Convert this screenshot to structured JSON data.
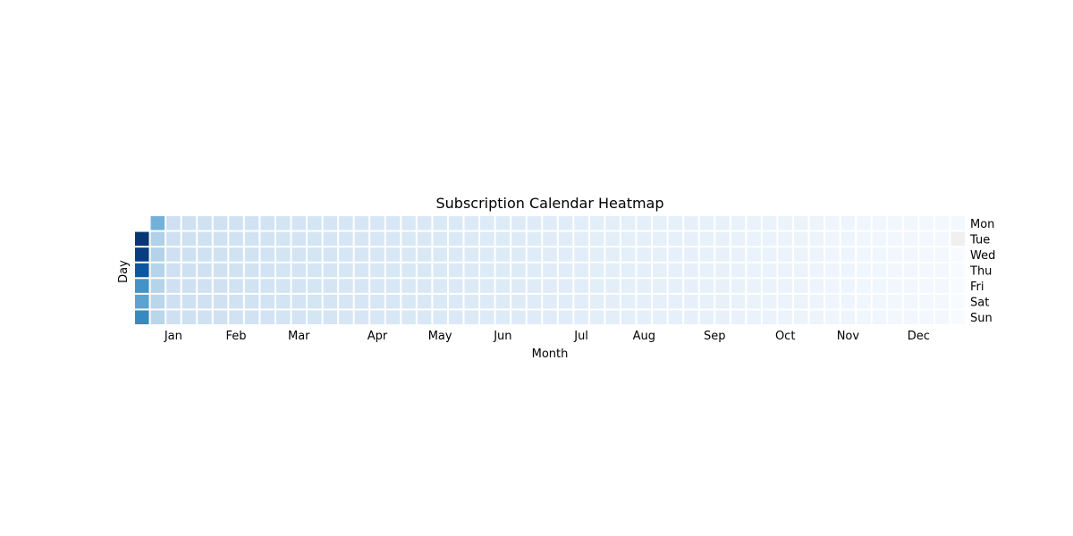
{
  "chart_data": {
    "type": "heatmap",
    "title": "Subscription Calendar Heatmap",
    "xlabel": "Month",
    "ylabel": "Day",
    "day_labels": [
      "Mon",
      "Tue",
      "Wed",
      "Thu",
      "Fri",
      "Sat",
      "Sun"
    ],
    "month_labels": [
      {
        "label": "Jan",
        "week": 2
      },
      {
        "label": "Feb",
        "week": 6
      },
      {
        "label": "Mar",
        "week": 10
      },
      {
        "label": "Apr",
        "week": 15
      },
      {
        "label": "May",
        "week": 19
      },
      {
        "label": "Jun",
        "week": 23
      },
      {
        "label": "Jul",
        "week": 28
      },
      {
        "label": "Aug",
        "week": 32
      },
      {
        "label": "Sep",
        "week": 36.5
      },
      {
        "label": "Oct",
        "week": 41
      },
      {
        "label": "Nov",
        "week": 45
      },
      {
        "label": "Dec",
        "week": 49.5
      }
    ],
    "weeks": 53,
    "colormap": [
      "#f7fbff",
      "#deebf7",
      "#c6dbef",
      "#9ecae1",
      "#6baed6",
      "#4292c6",
      "#2171b5",
      "#08519c",
      "#08306b"
    ],
    "missing_color": "#f0f0f0",
    "value_range": [
      0,
      1
    ],
    "first_week": [
      null,
      0.98,
      0.95,
      0.85,
      0.62,
      0.55,
      0.66
    ],
    "second_week": [
      0.48,
      0.32,
      0.31,
      0.3,
      0.3,
      0.29,
      0.29
    ],
    "decay": {
      "start": 0.21,
      "end": 0.02
    },
    "last_week": [
      0.02,
      null,
      0.0,
      0.0,
      0.0,
      0.0,
      0.0
    ]
  }
}
